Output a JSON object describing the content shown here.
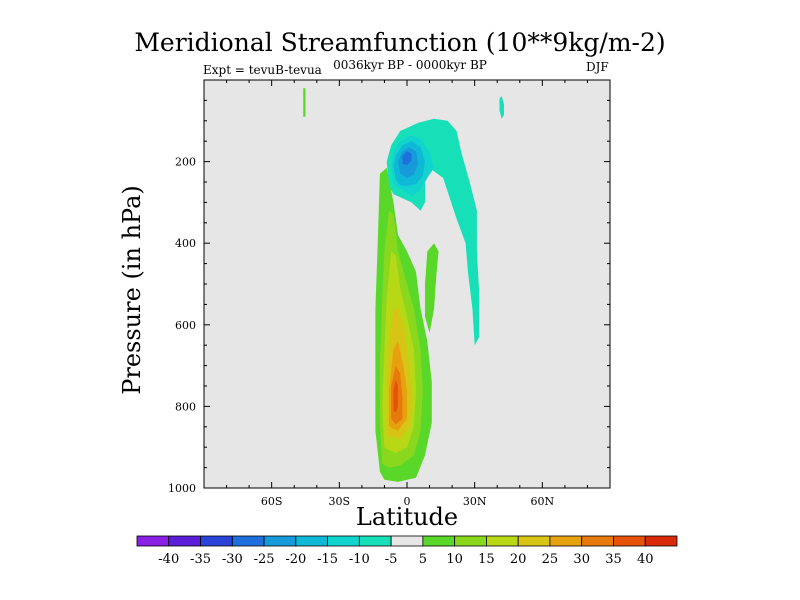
{
  "chart_data": {
    "type": "contour",
    "title": "Meridional Streamfunction (10**9kg/m-2)",
    "subtitle": "0036kyr BP - 0000kyr BP",
    "left_label": "Expt = tevuB-tevua",
    "right_label": "DJF",
    "xlabel": "Latitude",
    "ylabel": "Pressure (in hPa)",
    "xlim": [
      -90,
      90
    ],
    "ylim": [
      1000,
      0
    ],
    "x_ticks": [
      {
        "value": -60,
        "label": "60S"
      },
      {
        "value": -30,
        "label": "30S"
      },
      {
        "value": 0,
        "label": "0"
      },
      {
        "value": 30,
        "label": "30N"
      },
      {
        "value": 60,
        "label": "60N"
      }
    ],
    "y_ticks": [
      {
        "value": 200,
        "label": "200"
      },
      {
        "value": 400,
        "label": "400"
      },
      {
        "value": 600,
        "label": "600"
      },
      {
        "value": 800,
        "label": "800"
      },
      {
        "value": 1000,
        "label": "1000"
      }
    ],
    "background_color": "#e6e6e6",
    "colorbar": {
      "levels": [
        "-40",
        "-35",
        "-30",
        "-25",
        "-20",
        "-15",
        "-10",
        "-5",
        "5",
        "10",
        "15",
        "20",
        "25",
        "30",
        "35",
        "40"
      ],
      "colors": [
        "#8a1fe6",
        "#5a1fd6",
        "#2a43d8",
        "#1e70dc",
        "#169ad9",
        "#10b8d8",
        "#12d4cf",
        "#17e0b8",
        "#e6e6e6",
        "#5ad82a",
        "#8ad81e",
        "#b8d816",
        "#d8c414",
        "#e6a20e",
        "#e67a0c",
        "#e6520a",
        "#d82a08"
      ]
    },
    "contours": [
      {
        "name": "positive-cell-10",
        "level": 10,
        "color": "#5ad82a",
        "points": [
          [
            -12,
            960
          ],
          [
            -14,
            860
          ],
          [
            -14,
            720
          ],
          [
            -14,
            560
          ],
          [
            -13,
            400
          ],
          [
            -12,
            230
          ],
          [
            -9,
            215
          ],
          [
            -6,
            300
          ],
          [
            -4,
            380
          ],
          [
            0,
            420
          ],
          [
            4,
            470
          ],
          [
            6,
            560
          ],
          [
            9,
            640
          ],
          [
            11,
            740
          ],
          [
            11,
            840
          ],
          [
            8,
            920
          ],
          [
            4,
            975
          ],
          [
            -4,
            985
          ],
          [
            -10,
            980
          ]
        ]
      },
      {
        "name": "positive-cell-15",
        "level": 15,
        "color": "#8ad81e",
        "points": [
          [
            -11,
            940
          ],
          [
            -12,
            840
          ],
          [
            -12,
            700
          ],
          [
            -11,
            540
          ],
          [
            -10,
            420
          ],
          [
            -8,
            320
          ],
          [
            -6,
            330
          ],
          [
            -4,
            420
          ],
          [
            -1,
            480
          ],
          [
            3,
            560
          ],
          [
            6,
            660
          ],
          [
            7,
            760
          ],
          [
            6,
            860
          ],
          [
            3,
            920
          ],
          [
            -3,
            945
          ],
          [
            -8,
            950
          ]
        ]
      },
      {
        "name": "positive-cell-20",
        "level": 20,
        "color": "#b8d816",
        "points": [
          [
            -10,
            900
          ],
          [
            -11,
            800
          ],
          [
            -10,
            660
          ],
          [
            -9,
            540
          ],
          [
            -7,
            420
          ],
          [
            -5,
            430
          ],
          [
            -3,
            510
          ],
          [
            0,
            580
          ],
          [
            3,
            660
          ],
          [
            4,
            760
          ],
          [
            3,
            850
          ],
          [
            0,
            900
          ],
          [
            -5,
            915
          ]
        ]
      },
      {
        "name": "positive-cell-25",
        "level": 25,
        "color": "#d8c414",
        "points": [
          [
            -9,
            870
          ],
          [
            -9,
            760
          ],
          [
            -8,
            640
          ],
          [
            -6,
            560
          ],
          [
            -4,
            560
          ],
          [
            -1,
            620
          ],
          [
            1,
            700
          ],
          [
            2,
            780
          ],
          [
            1,
            850
          ],
          [
            -3,
            880
          ]
        ]
      },
      {
        "name": "positive-cell-30",
        "level": 30,
        "color": "#e6a20e",
        "points": [
          [
            -8,
            850
          ],
          [
            -8,
            760
          ],
          [
            -6,
            660
          ],
          [
            -4,
            640
          ],
          [
            -2,
            690
          ],
          [
            0,
            760
          ],
          [
            0,
            830
          ],
          [
            -4,
            860
          ]
        ]
      },
      {
        "name": "positive-cell-35",
        "level": 35,
        "color": "#e67a0c",
        "points": [
          [
            -7,
            830
          ],
          [
            -7,
            750
          ],
          [
            -5,
            700
          ],
          [
            -3,
            720
          ],
          [
            -2,
            780
          ],
          [
            -2,
            830
          ],
          [
            -5,
            845
          ]
        ]
      },
      {
        "name": "positive-cell-40",
        "level": 40,
        "color": "#e6520a",
        "points": [
          [
            -6,
            810
          ],
          [
            -6,
            760
          ],
          [
            -5,
            735
          ],
          [
            -4,
            750
          ],
          [
            -4,
            800
          ],
          [
            -5,
            815
          ]
        ]
      },
      {
        "name": "positive-lobe-east",
        "level": 10,
        "color": "#5ad82a",
        "points": [
          [
            8,
            500
          ],
          [
            9,
            420
          ],
          [
            12,
            400
          ],
          [
            14,
            420
          ],
          [
            13,
            480
          ],
          [
            12,
            560
          ],
          [
            10,
            620
          ],
          [
            8,
            580
          ]
        ]
      },
      {
        "name": "positive-streak-south",
        "level": 10,
        "color": "#5ad82a",
        "points": [
          [
            -46,
            20
          ],
          [
            -45,
            20
          ],
          [
            -45,
            90
          ],
          [
            -46,
            90
          ]
        ]
      },
      {
        "name": "negative-cell-5",
        "level": -5,
        "color": "#17e0b8",
        "points": [
          [
            -8,
            260
          ],
          [
            -9,
            200
          ],
          [
            -7,
            160
          ],
          [
            -3,
            125
          ],
          [
            5,
            105
          ],
          [
            12,
            95
          ],
          [
            18,
            100
          ],
          [
            22,
            125
          ],
          [
            24,
            175
          ],
          [
            28,
            255
          ],
          [
            31,
            320
          ],
          [
            31,
            420
          ],
          [
            32,
            520
          ],
          [
            32,
            630
          ],
          [
            30,
            650
          ],
          [
            29,
            560
          ],
          [
            27,
            470
          ],
          [
            26,
            400
          ],
          [
            22,
            340
          ],
          [
            16,
            240
          ],
          [
            11,
            220
          ],
          [
            8,
            250
          ],
          [
            8,
            300
          ],
          [
            6,
            320
          ],
          [
            2,
            300
          ],
          [
            -2,
            290
          ],
          [
            -6,
            280
          ]
        ]
      },
      {
        "name": "negative-cell-10",
        "level": -10,
        "color": "#12d4cf",
        "points": [
          [
            -6,
            255
          ],
          [
            -7,
            210
          ],
          [
            -6,
            175
          ],
          [
            -3,
            150
          ],
          [
            2,
            135
          ],
          [
            6,
            145
          ],
          [
            10,
            175
          ],
          [
            12,
            215
          ],
          [
            9,
            240
          ],
          [
            6,
            270
          ],
          [
            2,
            285
          ],
          [
            -2,
            270
          ]
        ]
      },
      {
        "name": "negative-cell-15",
        "level": -15,
        "color": "#10b8d8",
        "points": [
          [
            -5,
            245
          ],
          [
            -6,
            210
          ],
          [
            -5,
            185
          ],
          [
            -2,
            160
          ],
          [
            2,
            150
          ],
          [
            6,
            165
          ],
          [
            8,
            200
          ],
          [
            7,
            235
          ],
          [
            4,
            255
          ],
          [
            0,
            260
          ],
          [
            -3,
            258
          ]
        ]
      },
      {
        "name": "negative-cell-20",
        "level": -20,
        "color": "#169ad9",
        "points": [
          [
            -3,
            230
          ],
          [
            -4,
            200
          ],
          [
            -2,
            175
          ],
          [
            1,
            165
          ],
          [
            4,
            175
          ],
          [
            5,
            205
          ],
          [
            3,
            232
          ],
          [
            0,
            240
          ]
        ]
      },
      {
        "name": "negative-cell-25",
        "level": -25,
        "color": "#1e70dc",
        "points": [
          [
            -2,
            205
          ],
          [
            -2,
            185
          ],
          [
            0,
            175
          ],
          [
            2,
            180
          ],
          [
            2,
            198
          ],
          [
            0,
            208
          ]
        ]
      },
      {
        "name": "negative-streak-north",
        "level": -5,
        "color": "#17e0b8",
        "points": [
          [
            41,
            45
          ],
          [
            42,
            40
          ],
          [
            43,
            60
          ],
          [
            43,
            85
          ],
          [
            42,
            95
          ],
          [
            41,
            75
          ]
        ]
      }
    ]
  }
}
